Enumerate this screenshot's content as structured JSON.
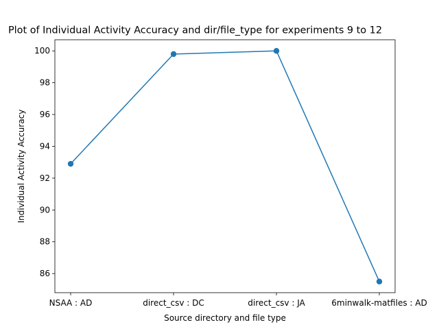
{
  "chart_data": {
    "type": "line",
    "title": "Plot of Individual Activity Accuracy and dir/file_type for experiments 9 to 12",
    "xlabel": "Source directory and file type",
    "ylabel": "Individual Activity Accuracy",
    "categories": [
      "NSAA : AD",
      "direct_csv : DC",
      "direct_csv : JA",
      "6minwalk-matfiles : AD"
    ],
    "series": [
      {
        "name": "Individual Activity Accuracy",
        "values": [
          92.9,
          99.8,
          100.0,
          85.5
        ],
        "color": "#1f77b4",
        "marker": "circle"
      }
    ],
    "ylim": [
      84.8,
      100.7
    ],
    "yticks": [
      86,
      88,
      90,
      92,
      94,
      96,
      98,
      100
    ],
    "grid": false,
    "legend": "none"
  }
}
